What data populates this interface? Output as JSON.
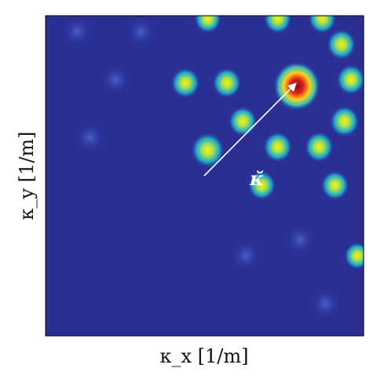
{
  "chart_data": {
    "type": "heatmap",
    "xlabel": "κ_x [1/m]",
    "ylabel": "κ_y [1/m]",
    "xticks": [],
    "yticks": [],
    "grid": false,
    "colormap": "jet",
    "colors": {
      "background": "#2b2f93",
      "low": "#2d34a6",
      "mid": "#1fb5cf",
      "high": "#f6e31c",
      "peak": "#d41c12",
      "arrow": "#ffffff"
    },
    "annotations": [
      {
        "id": "wave-vector-arrow",
        "label": "κ̆"
      }
    ],
    "hotspots": [
      {
        "x": 0.79,
        "y": 0.78,
        "i": 1.0
      },
      {
        "x": 0.51,
        "y": 0.58,
        "i": 0.78
      },
      {
        "x": 0.44,
        "y": 0.79,
        "i": 0.55
      },
      {
        "x": 0.57,
        "y": 0.79,
        "i": 0.55
      },
      {
        "x": 0.62,
        "y": 0.67,
        "i": 0.52
      },
      {
        "x": 0.73,
        "y": 0.59,
        "i": 0.55
      },
      {
        "x": 0.86,
        "y": 0.59,
        "i": 0.55
      },
      {
        "x": 0.94,
        "y": 0.67,
        "i": 0.58
      },
      {
        "x": 0.96,
        "y": 0.8,
        "i": 0.55
      },
      {
        "x": 0.93,
        "y": 0.91,
        "i": 0.55
      },
      {
        "x": 0.87,
        "y": 0.99,
        "i": 0.5
      },
      {
        "x": 0.73,
        "y": 0.99,
        "i": 0.5
      },
      {
        "x": 0.51,
        "y": 0.99,
        "i": 0.45
      },
      {
        "x": 0.68,
        "y": 0.47,
        "i": 0.48
      },
      {
        "x": 0.91,
        "y": 0.47,
        "i": 0.5
      },
      {
        "x": 0.98,
        "y": 0.25,
        "i": 0.4
      },
      {
        "x": 0.22,
        "y": 0.8,
        "i": 0.12
      },
      {
        "x": 0.1,
        "y": 0.95,
        "i": 0.1
      },
      {
        "x": 0.3,
        "y": 0.95,
        "i": 0.1
      },
      {
        "x": 0.8,
        "y": 0.3,
        "i": 0.12
      },
      {
        "x": 0.63,
        "y": 0.25,
        "i": 0.1
      },
      {
        "x": 0.88,
        "y": 0.1,
        "i": 0.1
      },
      {
        "x": 0.14,
        "y": 0.62,
        "i": 0.08
      }
    ]
  }
}
